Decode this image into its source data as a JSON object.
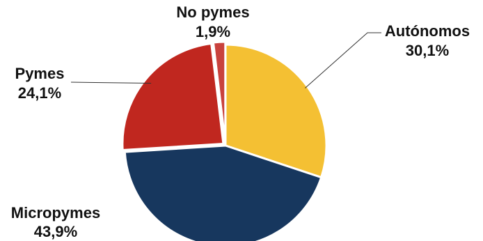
{
  "chart_data": {
    "type": "pie",
    "slices": [
      {
        "name": "Autónomos",
        "value_label": "30,1%",
        "value": 30.1,
        "color": "#F4C033"
      },
      {
        "name": "Micropymes",
        "value_label": "43,9%",
        "value": 43.9,
        "color": "#17375E"
      },
      {
        "name": "Pymes",
        "value_label": "24,1%",
        "value": 24.1,
        "color": "#C0271F"
      },
      {
        "name": "No pymes",
        "value_label": "1,9%",
        "value": 1.9,
        "color": "#C9423D"
      }
    ],
    "start_angle_deg": 0,
    "direction": "clockwise",
    "legend": "none",
    "data_labels": "outside-with-leader-lines"
  }
}
